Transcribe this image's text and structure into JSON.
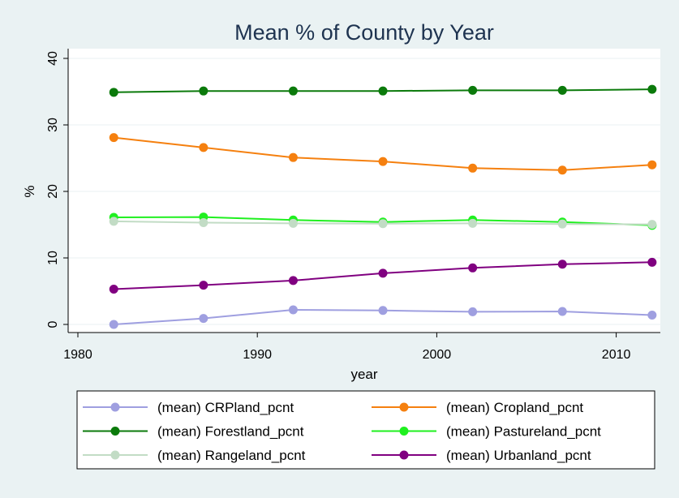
{
  "chart_data": {
    "type": "line",
    "title": "Mean % of County by Year",
    "xlabel": "year",
    "ylabel": "%",
    "xlim": [
      1980,
      2013
    ],
    "ylim": [
      0,
      40
    ],
    "x_ticks": [
      1980,
      1990,
      2000,
      2010
    ],
    "y_ticks": [
      0,
      10,
      20,
      30,
      40
    ],
    "grid": "horizontal",
    "legend_position": "bottom",
    "x": [
      1982,
      1987,
      1992,
      1997,
      2002,
      2007,
      2012
    ],
    "series": [
      {
        "name": "(mean) CRPland_pcnt",
        "color": "#9f9fe0",
        "values": [
          0.0,
          0.9,
          2.2,
          2.1,
          1.9,
          1.95,
          1.4
        ]
      },
      {
        "name": "(mean) Cropland_pcnt",
        "color": "#f5800f",
        "values": [
          28.1,
          26.6,
          25.1,
          24.5,
          23.5,
          23.2,
          24.0
        ]
      },
      {
        "name": "(mean) Forestland_pcnt",
        "color": "#0b7a0b",
        "values": [
          34.9,
          35.1,
          35.1,
          35.1,
          35.2,
          35.2,
          35.35
        ]
      },
      {
        "name": "(mean) Pastureland_pcnt",
        "color": "#1ff01f",
        "values": [
          16.1,
          16.15,
          15.7,
          15.4,
          15.7,
          15.4,
          14.9
        ]
      },
      {
        "name": "(mean) Rangeland_pcnt",
        "color": "#c2dcc5",
        "values": [
          15.5,
          15.3,
          15.2,
          15.15,
          15.2,
          15.1,
          15.05
        ]
      },
      {
        "name": "(mean) Urbanland_pcnt",
        "color": "#800080",
        "values": [
          5.3,
          5.9,
          6.6,
          7.7,
          8.5,
          9.05,
          9.35
        ]
      }
    ]
  }
}
